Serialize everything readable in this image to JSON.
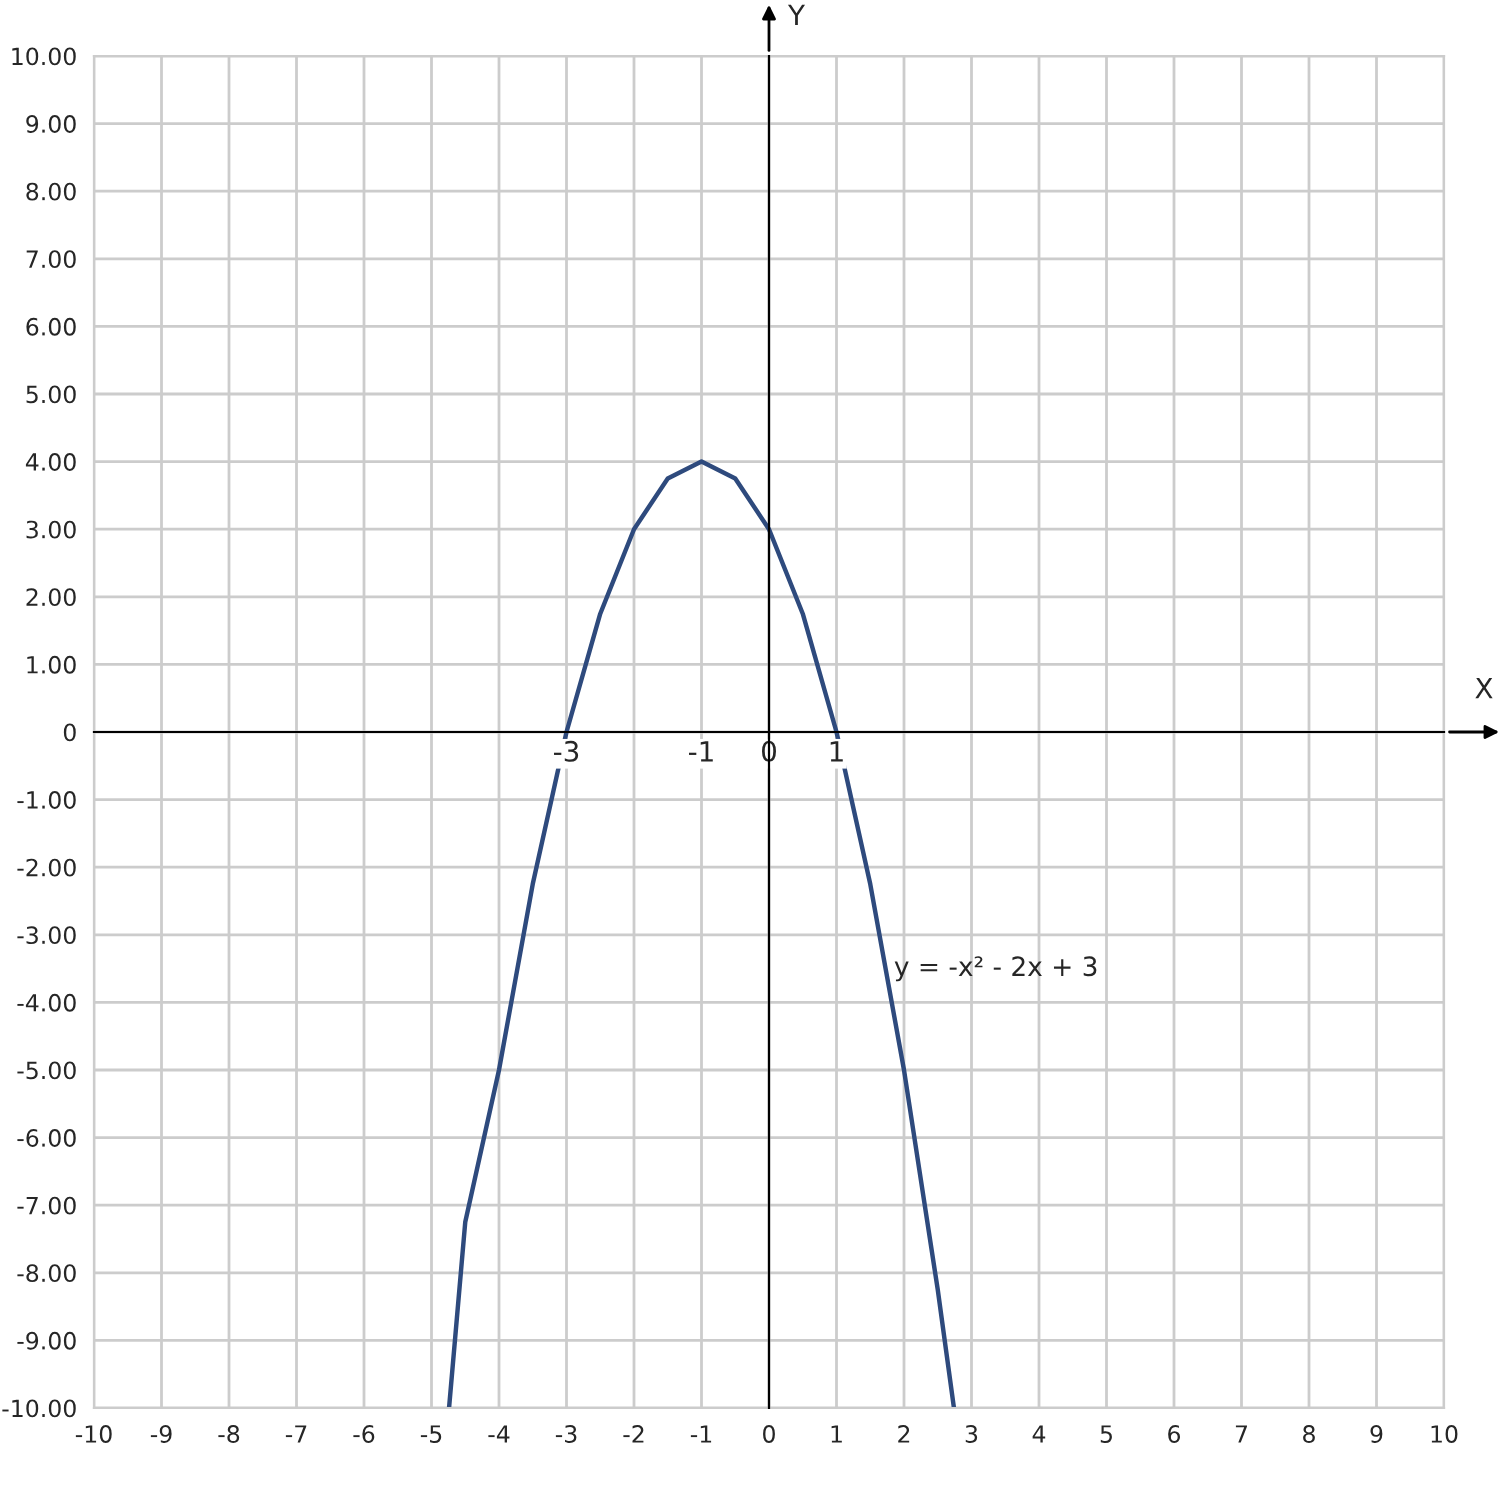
{
  "chart_data": {
    "type": "line",
    "xlabel": "X",
    "ylabel": "Y",
    "x": [
      -4.74,
      -4.5,
      -4,
      -3.5,
      -3,
      -2.5,
      -2,
      -1.5,
      -1,
      -0.5,
      0,
      0.5,
      1,
      1.5,
      2,
      2.5,
      2.74
    ],
    "series": [
      {
        "color": "#2e4a7d",
        "values": [
          -10,
          -7.25,
          -5,
          -2.25,
          0,
          1.75,
          3,
          3.75,
          4,
          3.75,
          3,
          1.75,
          0,
          -2.25,
          -5,
          -8.25,
          -10
        ]
      }
    ],
    "xlim": [
      -10,
      10
    ],
    "ylim": [
      -10,
      10
    ],
    "xticks": [
      -10,
      -9,
      -8,
      -7,
      -6,
      -5,
      -4,
      -3,
      -2,
      -1,
      0,
      1,
      2,
      3,
      4,
      5,
      6,
      7,
      8,
      9,
      10
    ],
    "yticks": [
      {
        "value": -10,
        "label": "-10.00"
      },
      {
        "value": -9,
        "label": "-9.00"
      },
      {
        "value": -8,
        "label": "-8.00"
      },
      {
        "value": -7,
        "label": "-7.00"
      },
      {
        "value": -6,
        "label": "-6.00"
      },
      {
        "value": -5,
        "label": "-5.00"
      },
      {
        "value": -4,
        "label": "-4.00"
      },
      {
        "value": -3,
        "label": "-3.00"
      },
      {
        "value": -2,
        "label": "-2.00"
      },
      {
        "value": -1,
        "label": "-1.00"
      },
      {
        "value": 0,
        "label": "0"
      },
      {
        "value": 1,
        "label": "1.00"
      },
      {
        "value": 2,
        "label": "2.00"
      },
      {
        "value": 3,
        "label": "3.00"
      },
      {
        "value": 4,
        "label": "4.00"
      },
      {
        "value": 5,
        "label": "5.00"
      },
      {
        "value": 6,
        "label": "6.00"
      },
      {
        "value": 7,
        "label": "7.00"
      },
      {
        "value": 8,
        "label": "8.00"
      },
      {
        "value": 9,
        "label": "9.00"
      },
      {
        "value": 10,
        "label": "10.00"
      }
    ],
    "annotations": [
      {
        "text": "y = -x² - 2x + 3",
        "x": 1.85,
        "y": -3.5
      }
    ],
    "x2lim": [
      -10,
      10
    ],
    "x2ticks": [
      -3,
      -1,
      0,
      1
    ],
    "grid": true,
    "line_style": "solid",
    "marker": "none",
    "legend": false
  }
}
